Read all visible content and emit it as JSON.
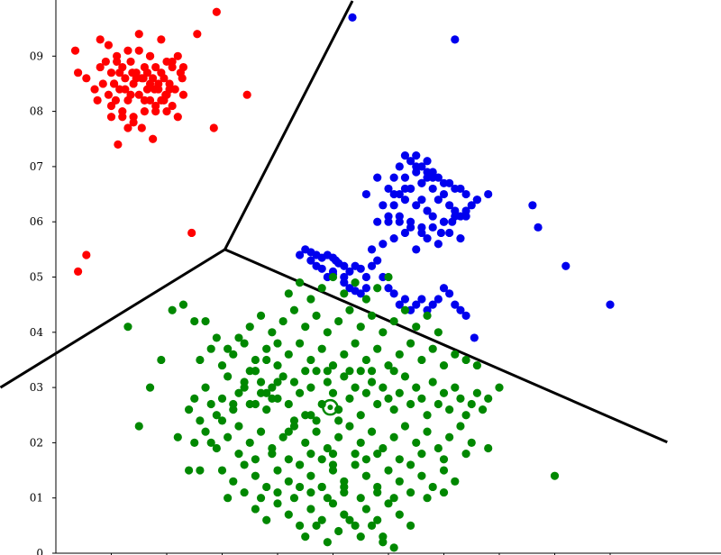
{
  "chart_data": {
    "type": "scatter",
    "title": "",
    "xlabel": "",
    "ylabel": "",
    "xlim": [
      0,
      1.2
    ],
    "ylim": [
      0,
      1.0
    ],
    "grid": false,
    "legend": "none",
    "y_ticks": [
      {
        "value": 0.1,
        "label": "01"
      },
      {
        "value": 0.2,
        "label": "02"
      },
      {
        "value": 0.3,
        "label": "03"
      },
      {
        "value": 0.4,
        "label": "04"
      },
      {
        "value": 0.5,
        "label": "05"
      },
      {
        "value": 0.6,
        "label": "06"
      },
      {
        "value": 0.7,
        "label": "07"
      },
      {
        "value": 0.8,
        "label": "08"
      },
      {
        "value": 0.9,
        "label": "09"
      },
      {
        "value": 0.0,
        "label": "0"
      }
    ],
    "x_ticks": [
      0.1,
      0.2,
      0.3,
      0.4,
      0.5,
      0.6,
      0.7,
      0.8,
      0.9,
      1.0
    ],
    "colors": {
      "red": "#ff0000",
      "blue": "#0000ee",
      "green": "#008800",
      "boundary": "#000000"
    },
    "boundaries": [
      {
        "name": "boundary-red-blue",
        "x": [
          0.305,
          0.535
        ],
        "y": [
          0.55,
          1.0
        ]
      },
      {
        "name": "boundary-red-green",
        "x": [
          0.305,
          -0.1
        ],
        "y": [
          0.55,
          0.3
        ]
      },
      {
        "name": "boundary-blue-green",
        "x": [
          0.305,
          1.103
        ],
        "y": [
          0.55,
          0.201
        ]
      }
    ],
    "centroid": {
      "x": 0.495,
      "y": 0.264
    },
    "series": [
      {
        "color": "red",
        "x": [
          0.035,
          0.04,
          0.055,
          0.07,
          0.075,
          0.08,
          0.085,
          0.09,
          0.095,
          0.1,
          0.1,
          0.105,
          0.11,
          0.115,
          0.12,
          0.12,
          0.125,
          0.13,
          0.135,
          0.14,
          0.14,
          0.145,
          0.15,
          0.15,
          0.155,
          0.16,
          0.16,
          0.165,
          0.17,
          0.17,
          0.175,
          0.18,
          0.18,
          0.185,
          0.19,
          0.19,
          0.195,
          0.2,
          0.2,
          0.205,
          0.21,
          0.21,
          0.215,
          0.22,
          0.22,
          0.225,
          0.23,
          0.23,
          0.08,
          0.095,
          0.11,
          0.13,
          0.15,
          0.17,
          0.19,
          0.21,
          0.12,
          0.14,
          0.16,
          0.18,
          0.2,
          0.1,
          0.13,
          0.155,
          0.175,
          0.195,
          0.165,
          0.145,
          0.125,
          0.105,
          0.185,
          0.205,
          0.115,
          0.135,
          0.158,
          0.178,
          0.198,
          0.138,
          0.108,
          0.17,
          0.112,
          0.228,
          0.255,
          0.29,
          0.345,
          0.285,
          0.245,
          0.055,
          0.04
        ],
        "y": [
          0.91,
          0.87,
          0.86,
          0.84,
          0.82,
          0.88,
          0.85,
          0.89,
          0.83,
          0.87,
          0.81,
          0.85,
          0.9,
          0.84,
          0.88,
          0.79,
          0.86,
          0.82,
          0.89,
          0.85,
          0.78,
          0.87,
          0.83,
          0.91,
          0.86,
          0.8,
          0.88,
          0.84,
          0.9,
          0.82,
          0.86,
          0.88,
          0.8,
          0.84,
          0.87,
          0.82,
          0.86,
          0.83,
          0.89,
          0.85,
          0.88,
          0.81,
          0.84,
          0.9,
          0.79,
          0.87,
          0.83,
          0.88,
          0.93,
          0.92,
          0.89,
          0.91,
          0.94,
          0.9,
          0.93,
          0.89,
          0.8,
          0.79,
          0.82,
          0.81,
          0.8,
          0.79,
          0.77,
          0.77,
          0.75,
          0.82,
          0.87,
          0.86,
          0.84,
          0.85,
          0.85,
          0.84,
          0.87,
          0.83,
          0.86,
          0.84,
          0.83,
          0.87,
          0.82,
          0.85,
          0.74,
          0.86,
          0.94,
          0.98,
          0.83,
          0.77,
          0.58,
          0.54,
          0.51
        ]
      },
      {
        "color": "blue",
        "x": [
          0.44,
          0.45,
          0.46,
          0.47,
          0.48,
          0.49,
          0.5,
          0.505,
          0.51,
          0.52,
          0.5,
          0.49,
          0.47,
          0.46,
          0.48,
          0.5,
          0.52,
          0.53,
          0.54,
          0.55,
          0.56,
          0.52,
          0.53,
          0.54,
          0.55,
          0.56,
          0.57,
          0.58,
          0.59,
          0.6,
          0.61,
          0.62,
          0.63,
          0.64,
          0.65,
          0.66,
          0.67,
          0.68,
          0.69,
          0.7,
          0.71,
          0.72,
          0.73,
          0.74,
          0.57,
          0.59,
          0.61,
          0.63,
          0.65,
          0.67,
          0.69,
          0.71,
          0.73,
          0.58,
          0.6,
          0.62,
          0.64,
          0.66,
          0.68,
          0.7,
          0.72,
          0.59,
          0.61,
          0.63,
          0.65,
          0.67,
          0.69,
          0.71,
          0.6,
          0.62,
          0.64,
          0.66,
          0.68,
          0.7,
          0.61,
          0.63,
          0.65,
          0.67,
          0.62,
          0.64,
          0.66,
          0.68,
          0.63,
          0.65,
          0.67,
          0.64,
          0.66,
          0.6,
          0.62,
          0.64,
          0.66,
          0.68,
          0.7,
          0.72,
          0.74,
          0.75,
          0.76,
          0.73,
          0.71,
          0.69,
          0.67,
          0.65,
          0.58,
          0.56,
          0.61,
          0.63,
          0.66,
          0.68,
          0.7,
          0.72,
          0.74,
          0.76,
          0.78,
          0.74,
          0.73,
          0.715,
          0.695,
          0.86,
          0.87,
          0.92,
          1.0,
          0.755,
          0.535,
          0.72
        ],
        "y": [
          0.54,
          0.55,
          0.545,
          0.54,
          0.535,
          0.54,
          0.535,
          0.53,
          0.525,
          0.52,
          0.51,
          0.5,
          0.52,
          0.53,
          0.515,
          0.505,
          0.5,
          0.51,
          0.52,
          0.515,
          0.5,
          0.49,
          0.48,
          0.475,
          0.47,
          0.48,
          0.52,
          0.53,
          0.5,
          0.48,
          0.47,
          0.45,
          0.46,
          0.44,
          0.45,
          0.46,
          0.44,
          0.45,
          0.46,
          0.48,
          0.47,
          0.45,
          0.44,
          0.43,
          0.55,
          0.56,
          0.57,
          0.58,
          0.55,
          0.57,
          0.56,
          0.58,
          0.57,
          0.6,
          0.6,
          0.61,
          0.6,
          0.59,
          0.61,
          0.6,
          0.61,
          0.63,
          0.63,
          0.64,
          0.63,
          0.62,
          0.64,
          0.63,
          0.66,
          0.65,
          0.66,
          0.67,
          0.66,
          0.65,
          0.68,
          0.68,
          0.69,
          0.68,
          0.7,
          0.71,
          0.7,
          0.69,
          0.72,
          0.72,
          0.71,
          0.66,
          0.64,
          0.61,
          0.6,
          0.59,
          0.58,
          0.59,
          0.6,
          0.62,
          0.61,
          0.63,
          0.64,
          0.66,
          0.67,
          0.68,
          0.69,
          0.7,
          0.68,
          0.65,
          0.65,
          0.66,
          0.67,
          0.68,
          0.67,
          0.66,
          0.65,
          0.64,
          0.65,
          0.62,
          0.61,
          0.6,
          0.58,
          0.63,
          0.59,
          0.52,
          0.45,
          0.39,
          0.97,
          0.93
        ]
      },
      {
        "color": "green",
        "x": [
          0.24,
          0.25,
          0.26,
          0.27,
          0.28,
          0.29,
          0.3,
          0.31,
          0.32,
          0.33,
          0.34,
          0.35,
          0.36,
          0.37,
          0.38,
          0.39,
          0.4,
          0.41,
          0.42,
          0.43,
          0.44,
          0.45,
          0.46,
          0.47,
          0.48,
          0.49,
          0.5,
          0.51,
          0.52,
          0.53,
          0.54,
          0.55,
          0.56,
          0.57,
          0.58,
          0.59,
          0.6,
          0.61,
          0.62,
          0.63,
          0.64,
          0.65,
          0.66,
          0.67,
          0.68,
          0.69,
          0.7,
          0.71,
          0.72,
          0.73,
          0.74,
          0.75,
          0.76,
          0.77,
          0.78,
          0.26,
          0.28,
          0.3,
          0.32,
          0.34,
          0.36,
          0.38,
          0.4,
          0.42,
          0.44,
          0.46,
          0.48,
          0.5,
          0.52,
          0.54,
          0.56,
          0.58,
          0.6,
          0.62,
          0.64,
          0.66,
          0.68,
          0.7,
          0.72,
          0.74,
          0.76,
          0.25,
          0.27,
          0.29,
          0.31,
          0.33,
          0.35,
          0.37,
          0.39,
          0.41,
          0.43,
          0.45,
          0.47,
          0.49,
          0.51,
          0.53,
          0.55,
          0.57,
          0.59,
          0.61,
          0.63,
          0.65,
          0.67,
          0.69,
          0.71,
          0.73,
          0.75,
          0.3,
          0.32,
          0.34,
          0.36,
          0.38,
          0.4,
          0.42,
          0.44,
          0.46,
          0.48,
          0.5,
          0.52,
          0.54,
          0.56,
          0.58,
          0.6,
          0.62,
          0.64,
          0.66,
          0.68,
          0.7,
          0.72,
          0.35,
          0.37,
          0.39,
          0.41,
          0.43,
          0.45,
          0.47,
          0.49,
          0.51,
          0.53,
          0.55,
          0.57,
          0.59,
          0.61,
          0.63,
          0.65,
          0.67,
          0.69,
          0.36,
          0.38,
          0.4,
          0.42,
          0.44,
          0.46,
          0.48,
          0.5,
          0.52,
          0.54,
          0.56,
          0.58,
          0.6,
          0.62,
          0.64,
          0.42,
          0.44,
          0.46,
          0.48,
          0.5,
          0.52,
          0.54,
          0.56,
          0.58,
          0.6,
          0.45,
          0.47,
          0.49,
          0.51,
          0.53,
          0.55,
          0.57,
          0.59,
          0.33,
          0.36,
          0.39,
          0.31,
          0.34,
          0.37,
          0.4,
          0.43,
          0.46,
          0.49,
          0.52,
          0.55,
          0.58,
          0.61,
          0.64,
          0.67,
          0.7,
          0.43,
          0.47,
          0.51,
          0.45,
          0.49,
          0.53,
          0.57,
          0.61,
          0.55,
          0.4,
          0.38,
          0.36,
          0.42,
          0.44,
          0.46,
          0.48,
          0.5,
          0.56,
          0.58,
          0.62,
          0.66,
          0.7,
          0.74,
          0.78,
          0.8,
          0.44,
          0.48,
          0.52,
          0.5,
          0.54,
          0.46,
          0.42,
          0.39,
          0.37,
          0.35,
          0.33,
          0.31,
          0.29,
          0.27,
          0.25,
          0.23,
          0.21,
          0.19,
          0.17,
          0.15,
          0.13,
          0.22,
          0.24,
          0.26,
          0.28,
          0.3,
          0.32,
          0.34,
          0.36,
          0.38,
          0.4,
          0.9,
          0.59,
          0.61
        ],
        "y": [
          0.26,
          0.28,
          0.24,
          0.3,
          0.27,
          0.25,
          0.28,
          0.32,
          0.26,
          0.29,
          0.31,
          0.27,
          0.33,
          0.29,
          0.26,
          0.3,
          0.28,
          0.32,
          0.27,
          0.31,
          0.29,
          0.25,
          0.3,
          0.33,
          0.27,
          0.31,
          0.29,
          0.26,
          0.32,
          0.28,
          0.3,
          0.25,
          0.29,
          0.31,
          0.27,
          0.3,
          0.28,
          0.26,
          0.29,
          0.32,
          0.27,
          0.3,
          0.28,
          0.25,
          0.31,
          0.27,
          0.29,
          0.26,
          0.3,
          0.28,
          0.25,
          0.27,
          0.29,
          0.26,
          0.28,
          0.35,
          0.37,
          0.34,
          0.36,
          0.38,
          0.35,
          0.37,
          0.34,
          0.36,
          0.38,
          0.35,
          0.37,
          0.34,
          0.36,
          0.38,
          0.35,
          0.37,
          0.34,
          0.36,
          0.38,
          0.35,
          0.37,
          0.34,
          0.36,
          0.35,
          0.34,
          0.2,
          0.22,
          0.19,
          0.21,
          0.23,
          0.2,
          0.22,
          0.19,
          0.21,
          0.23,
          0.2,
          0.22,
          0.19,
          0.21,
          0.23,
          0.2,
          0.22,
          0.19,
          0.21,
          0.23,
          0.2,
          0.22,
          0.19,
          0.21,
          0.23,
          0.2,
          0.15,
          0.13,
          0.16,
          0.14,
          0.12,
          0.15,
          0.13,
          0.16,
          0.14,
          0.12,
          0.15,
          0.13,
          0.16,
          0.14,
          0.12,
          0.15,
          0.13,
          0.16,
          0.14,
          0.12,
          0.15,
          0.13,
          0.41,
          0.43,
          0.4,
          0.42,
          0.44,
          0.41,
          0.43,
          0.4,
          0.42,
          0.44,
          0.41,
          0.43,
          0.4,
          0.42,
          0.44,
          0.41,
          0.43,
          0.4,
          0.08,
          0.06,
          0.09,
          0.07,
          0.05,
          0.08,
          0.06,
          0.09,
          0.07,
          0.05,
          0.08,
          0.06,
          0.09,
          0.07,
          0.05,
          0.47,
          0.49,
          0.46,
          0.48,
          0.5,
          0.47,
          0.49,
          0.46,
          0.48,
          0.5,
          0.03,
          0.05,
          0.02,
          0.04,
          0.06,
          0.03,
          0.05,
          0.02,
          0.18,
          0.17,
          0.18,
          0.1,
          0.11,
          0.1,
          0.11,
          0.1,
          0.11,
          0.1,
          0.11,
          0.1,
          0.11,
          0.1,
          0.11,
          0.1,
          0.11,
          0.24,
          0.24,
          0.24,
          0.33,
          0.33,
          0.33,
          0.33,
          0.33,
          0.33,
          0.31,
          0.29,
          0.27,
          0.17,
          0.16,
          0.18,
          0.17,
          0.16,
          0.17,
          0.18,
          0.17,
          0.18,
          0.17,
          0.18,
          0.19,
          0.3,
          0.12,
          0.12,
          0.12,
          0.18,
          0.18,
          0.25,
          0.22,
          0.28,
          0.31,
          0.33,
          0.39,
          0.37,
          0.39,
          0.42,
          0.42,
          0.45,
          0.44,
          0.35,
          0.3,
          0.23,
          0.41,
          0.21,
          0.15,
          0.15,
          0.2,
          0.24,
          0.27,
          0.3,
          0.33,
          0.35,
          0.38,
          0.14,
          0.03,
          0.01
        ]
      }
    ]
  }
}
